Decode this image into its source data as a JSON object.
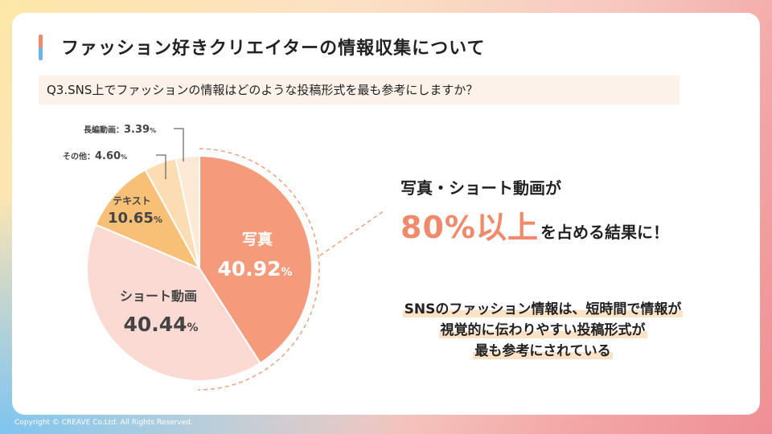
{
  "header": {
    "title": "ファッション好きクリエイターの情報収集について",
    "question": "Q3.SNS上でファッションの情報はどのような投稿形式を最も参考にしますか？"
  },
  "chart_data": {
    "type": "pie",
    "slices": [
      {
        "name": "写真",
        "value": 40.92,
        "value_label": "40.92",
        "unit": "%",
        "color": "#f59a7a"
      },
      {
        "name": "ショート動画",
        "value": 40.44,
        "value_label": "40.44",
        "unit": "%",
        "color": "#fadad2"
      },
      {
        "name": "テキスト",
        "value": 10.65,
        "value_label": "10.65",
        "unit": "%",
        "color": "#f8c077"
      },
      {
        "name": "その他",
        "value": 4.6,
        "value_label": "4.60",
        "unit": "%",
        "color": "#fbdcb3"
      },
      {
        "name": "長編動画",
        "value": 3.39,
        "value_label": "3.39",
        "unit": "%",
        "color": "#fde9d6"
      }
    ],
    "callout_labels": {
      "other": "その他：",
      "long_video": "長編動画："
    }
  },
  "highlight": {
    "line1": "写真・ショート動画が",
    "big": "80%以上",
    "rest": "を占める結果に！"
  },
  "summary": {
    "line1": "SNSのファッション情報は、短時間で情報が",
    "line2": "視覚的に伝わりやすい投稿形式が",
    "line3": "最も参考にされている"
  },
  "footer": {
    "copyright": "Copyright © CREAVE Co.Ltd. All Rights Reserved."
  }
}
